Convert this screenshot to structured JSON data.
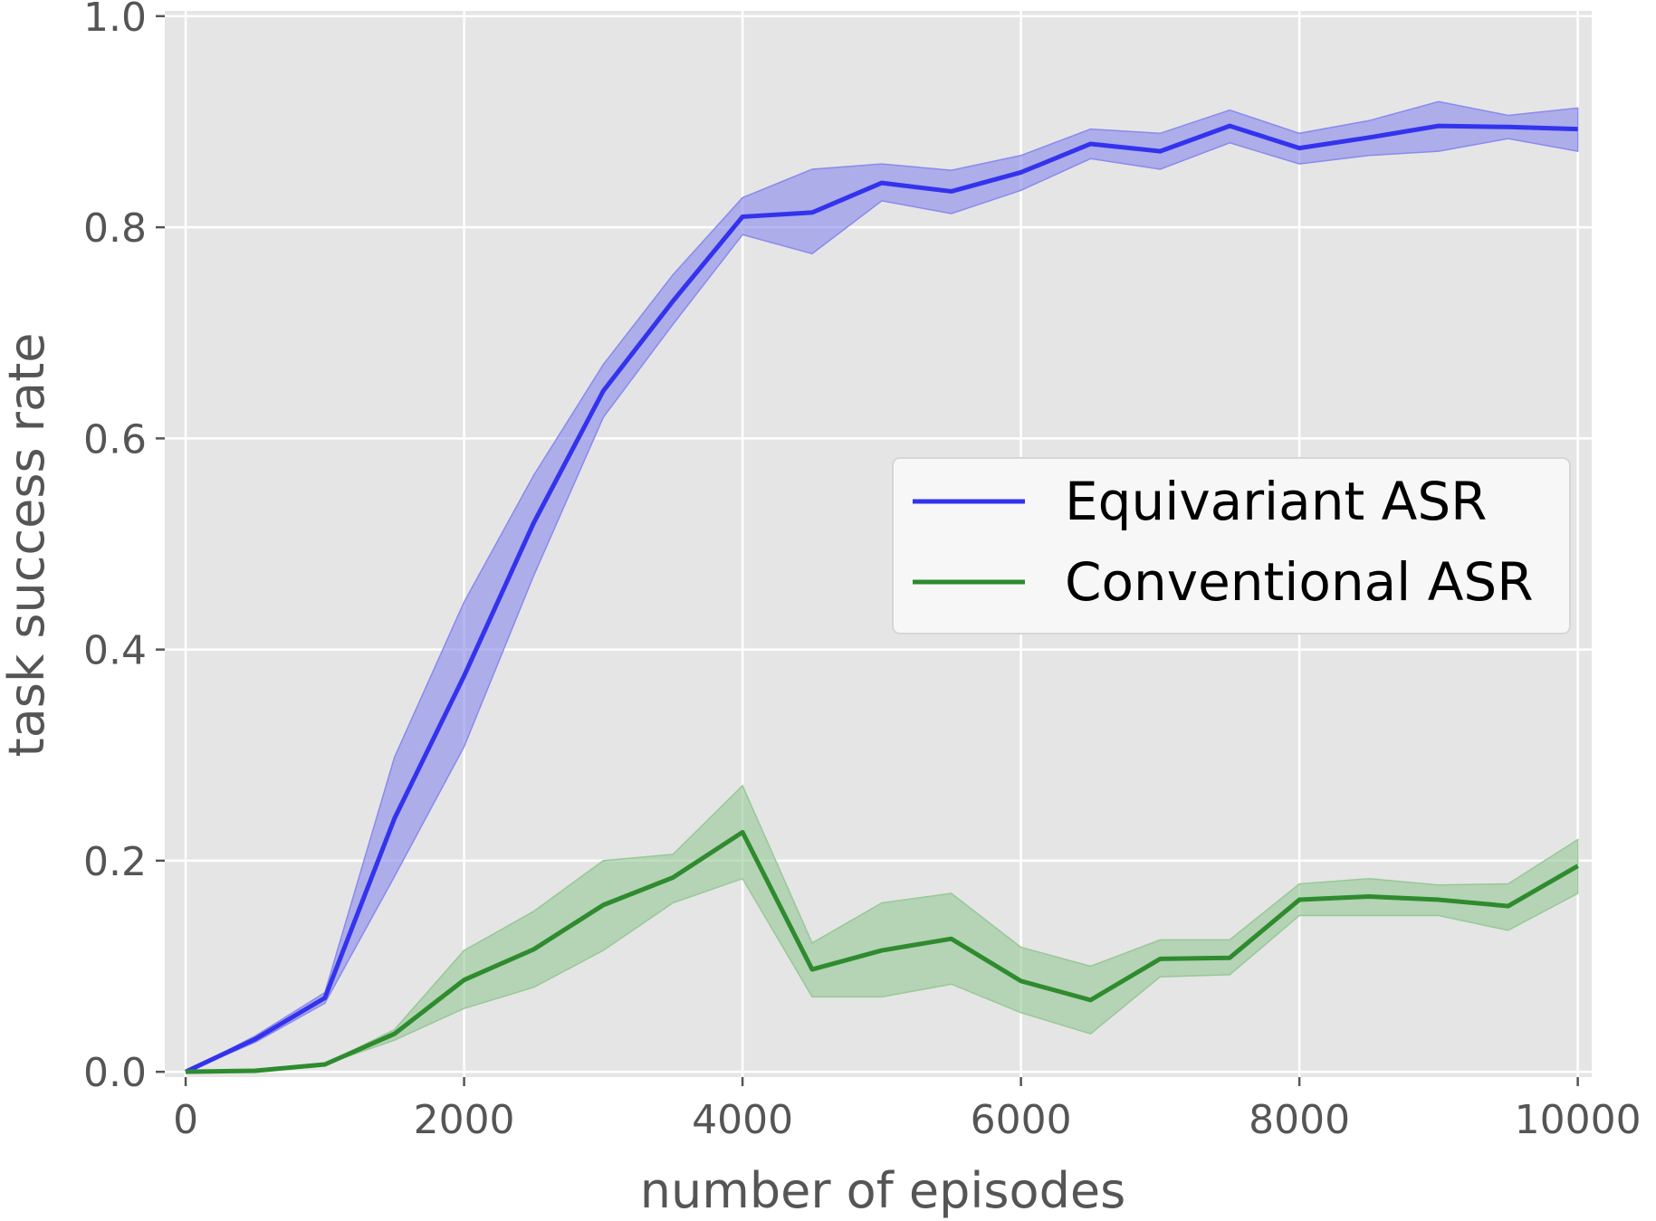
{
  "chart_data": {
    "type": "line",
    "xlabel": "number of episodes",
    "ylabel": "task success rate",
    "xlim": [
      -150,
      10100
    ],
    "ylim": [
      -0.005,
      1.005
    ],
    "xticks": [
      0,
      2000,
      4000,
      6000,
      8000,
      10000
    ],
    "xtick_labels": [
      "0",
      "2000",
      "4000",
      "6000",
      "8000",
      "10000"
    ],
    "yticks": [
      0.0,
      0.2,
      0.4,
      0.6,
      0.8,
      1.0
    ],
    "ytick_labels": [
      "0.0",
      "0.2",
      "0.4",
      "0.6",
      "0.8",
      "1.0"
    ],
    "grid": true,
    "background": "#e5e5e5",
    "legend_position": "center-right",
    "x": [
      0,
      500,
      1000,
      1500,
      2000,
      2500,
      3000,
      3500,
      4000,
      4500,
      5000,
      5500,
      6000,
      6500,
      7000,
      7500,
      8000,
      8500,
      9000,
      9500,
      10000
    ],
    "series": [
      {
        "name": "Equivariant ASR",
        "color": "#3333ee",
        "band_color": "#8a8aee",
        "values": [
          0.0,
          0.031,
          0.07,
          0.24,
          0.375,
          0.52,
          0.645,
          0.73,
          0.81,
          0.814,
          0.842,
          0.834,
          0.852,
          0.879,
          0.872,
          0.896,
          0.875,
          0.885,
          0.896,
          0.895,
          0.893
        ],
        "lower": [
          0.0,
          0.028,
          0.065,
          0.185,
          0.308,
          0.47,
          0.62,
          0.708,
          0.793,
          0.775,
          0.825,
          0.813,
          0.835,
          0.865,
          0.855,
          0.88,
          0.86,
          0.868,
          0.872,
          0.884,
          0.872
        ],
        "upper": [
          0.0,
          0.034,
          0.075,
          0.298,
          0.445,
          0.565,
          0.67,
          0.755,
          0.828,
          0.855,
          0.86,
          0.854,
          0.868,
          0.893,
          0.889,
          0.911,
          0.889,
          0.901,
          0.919,
          0.906,
          0.913
        ]
      },
      {
        "name": "Conventional ASR",
        "color": "#2e8b2e",
        "band_color": "#98c898",
        "values": [
          0.0,
          0.001,
          0.007,
          0.036,
          0.087,
          0.116,
          0.158,
          0.184,
          0.227,
          0.097,
          0.115,
          0.126,
          0.086,
          0.068,
          0.107,
          0.108,
          0.163,
          0.166,
          0.163,
          0.157,
          0.195
        ],
        "lower": [
          0.0,
          0.001,
          0.007,
          0.03,
          0.06,
          0.08,
          0.115,
          0.16,
          0.183,
          0.071,
          0.071,
          0.083,
          0.056,
          0.036,
          0.09,
          0.092,
          0.148,
          0.148,
          0.148,
          0.134,
          0.169
        ],
        "upper": [
          0.0,
          0.001,
          0.007,
          0.04,
          0.115,
          0.152,
          0.2,
          0.206,
          0.271,
          0.122,
          0.16,
          0.169,
          0.118,
          0.1,
          0.125,
          0.125,
          0.178,
          0.183,
          0.177,
          0.178,
          0.22
        ]
      }
    ]
  }
}
